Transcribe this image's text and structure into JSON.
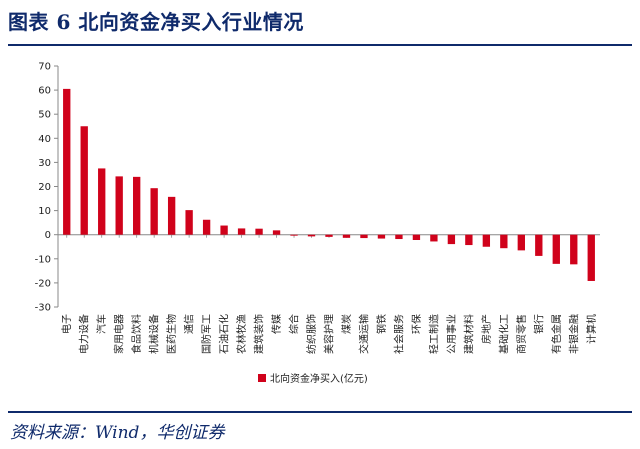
{
  "header": {
    "title": "图表 6  北向资金净买入行业情况"
  },
  "footer": {
    "source": "资料来源：Wind，华创证券"
  },
  "colors": {
    "bar": "#d0021b",
    "accent": "#0f2a6b"
  },
  "chart_data": {
    "type": "bar",
    "categories": [
      "电子",
      "电力设备",
      "汽车",
      "家用电器",
      "食品饮料",
      "机械设备",
      "医药生物",
      "通信",
      "国防军工",
      "石油石化",
      "农林牧渔",
      "建筑装饰",
      "传媒",
      "综合",
      "纺织服饰",
      "美容护理",
      "煤炭",
      "交通运输",
      "钢铁",
      "社会服务",
      "环保",
      "轻工制造",
      "公用事业",
      "建筑材料",
      "房地产",
      "基础化工",
      "商贸零售",
      "银行",
      "有色金属",
      "非银金融",
      "计算机"
    ],
    "series": [
      {
        "name": "北向资金净买入(亿元)",
        "values": [
          60.5,
          45,
          27.5,
          24.2,
          24,
          19.3,
          15.7,
          10.2,
          6.2,
          3.8,
          2.6,
          2.5,
          1.8,
          -0.4,
          -0.7,
          -0.9,
          -1.3,
          -1.4,
          -1.6,
          -1.8,
          -2.2,
          -2.8,
          -3.9,
          -4.3,
          -5,
          -5.6,
          -6.5,
          -8.8,
          -12.1,
          -12.3,
          -19.2
        ]
      }
    ],
    "ylim": [
      -30,
      70
    ],
    "yticks": [
      -30,
      -20,
      -10,
      0,
      10,
      20,
      30,
      40,
      50,
      60,
      70
    ],
    "legend": "bottom",
    "grid": false
  }
}
